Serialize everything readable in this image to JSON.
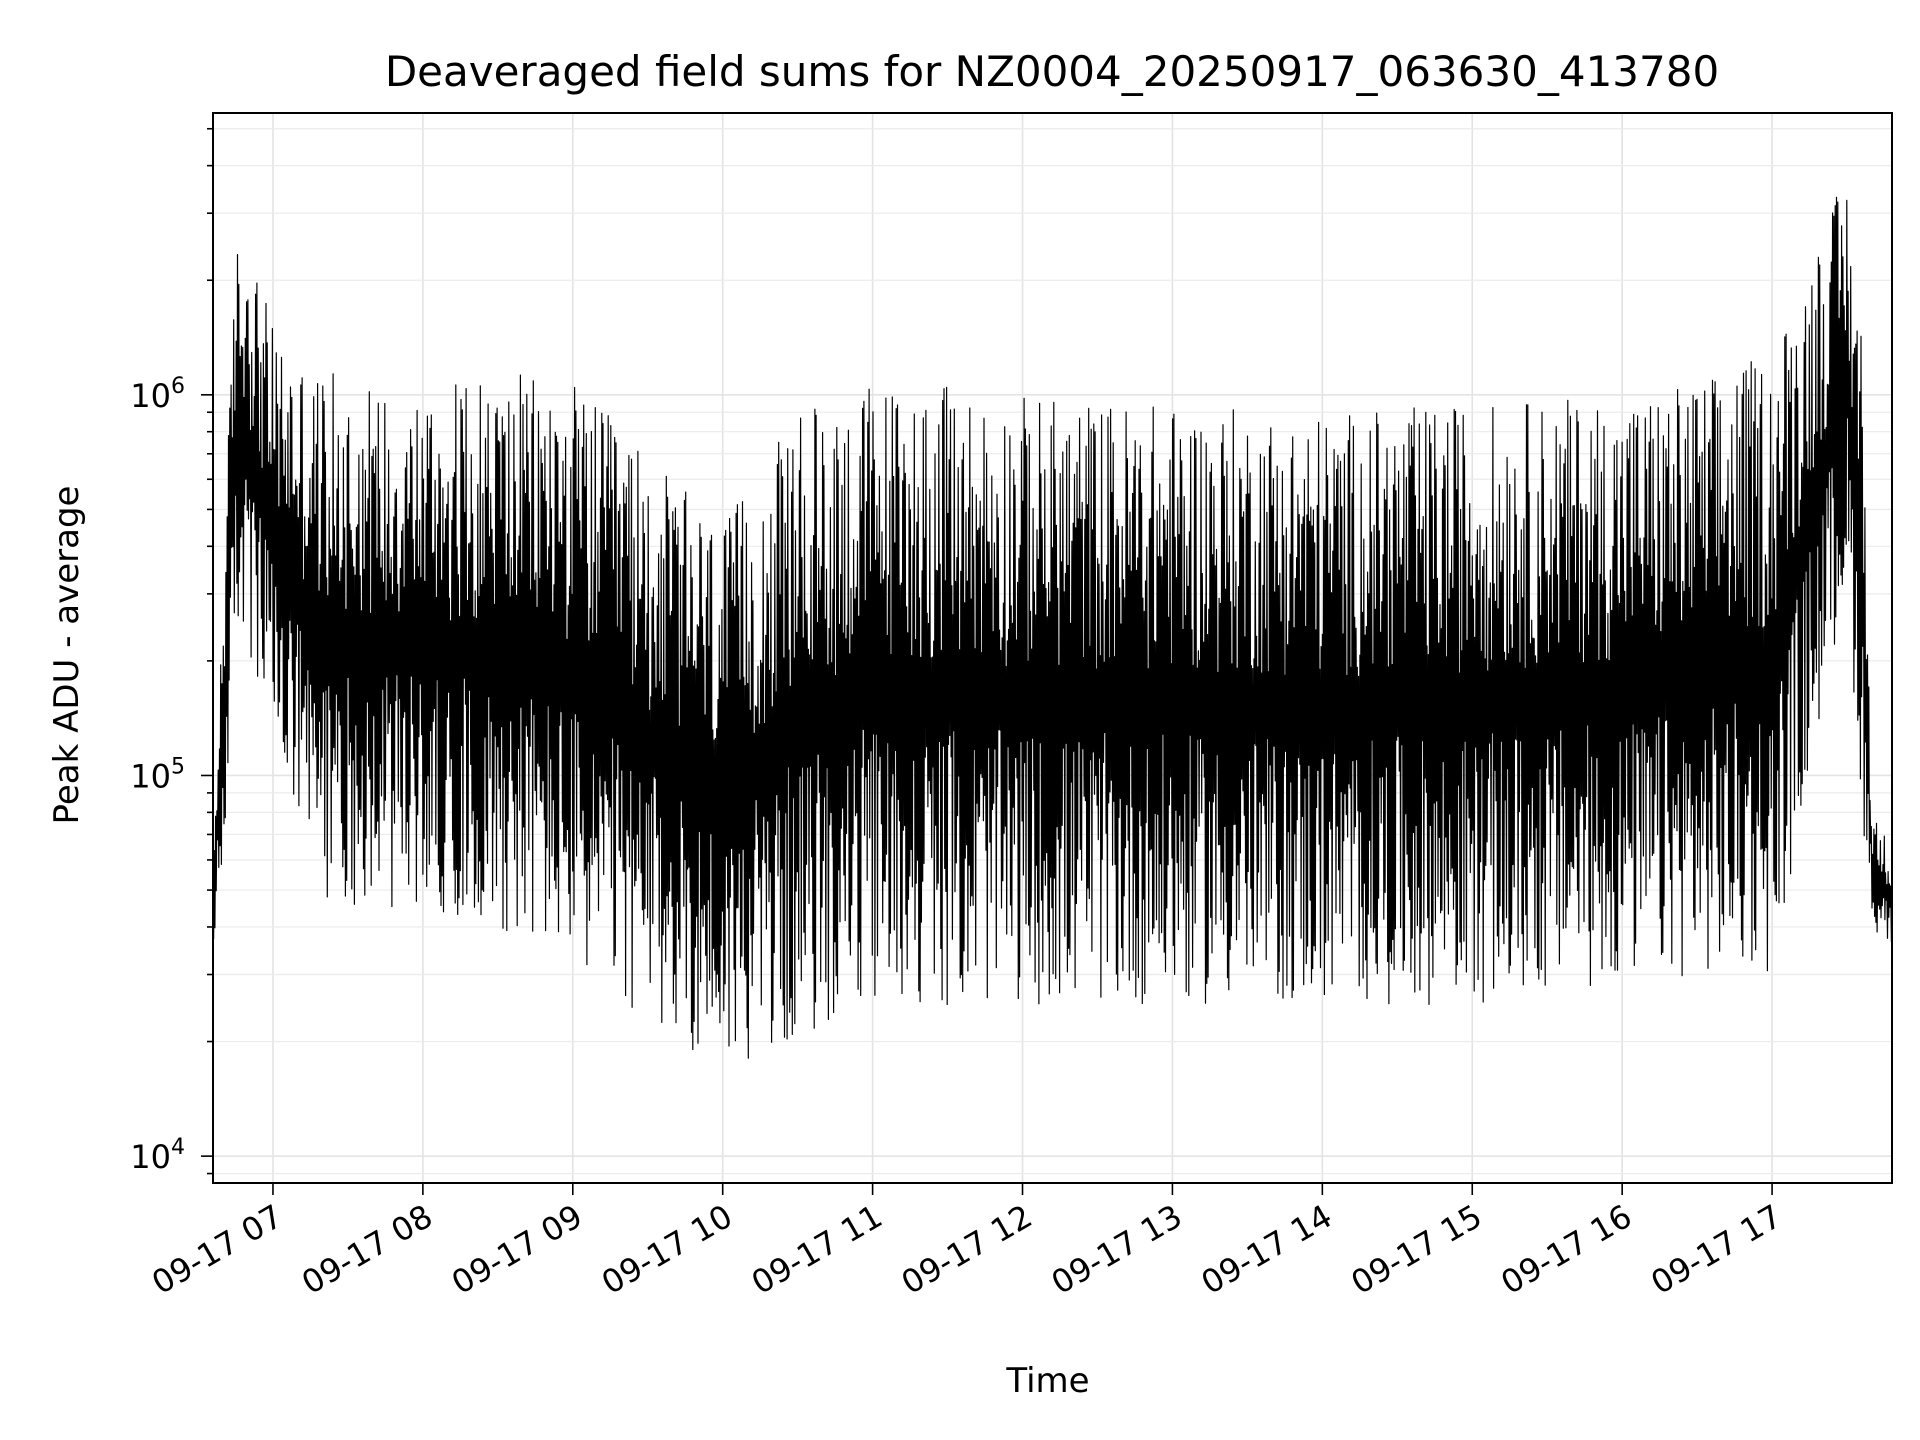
{
  "chart_data": {
    "type": "line",
    "title": "Deaveraged field sums for NZ0004_20250917_063630_413780",
    "xlabel": "Time",
    "ylabel": "Peak ADU - average",
    "yscale": "log",
    "ylim": [
      8500,
      5500000
    ],
    "xlim": [
      "2025-09-17 06:36",
      "2025-09-17 17:48"
    ],
    "x_tick_labels": [
      "09-17 07",
      "09-17 08",
      "09-17 09",
      "09-17 10",
      "09-17 11",
      "09-17 12",
      "09-17 13",
      "09-17 14",
      "09-17 15",
      "09-17 16",
      "09-17 17"
    ],
    "y_tick_labels": [
      {
        "base": "10",
        "exp": "4",
        "value": 10000
      },
      {
        "base": "10",
        "exp": "5",
        "value": 100000
      },
      {
        "base": "10",
        "exp": "6",
        "value": 1000000
      }
    ],
    "grid": true,
    "series_color": "#000000",
    "series": [
      {
        "envelope": {
          "x": [
            "2025-09-17 06:36",
            "2025-09-17 06:41",
            "2025-09-17 06:45",
            "2025-09-17 06:50",
            "2025-09-17 06:55",
            "2025-09-17 07:00",
            "2025-09-17 07:15",
            "2025-09-17 07:30",
            "2025-09-17 08:00",
            "2025-09-17 08:30",
            "2025-09-17 09:00",
            "2025-09-17 09:30",
            "2025-09-17 10:00",
            "2025-09-17 10:30",
            "2025-09-17 11:00",
            "2025-09-17 12:00",
            "2025-09-17 13:00",
            "2025-09-17 14:00",
            "2025-09-17 15:00",
            "2025-09-17 16:00",
            "2025-09-17 16:30",
            "2025-09-17 17:00",
            "2025-09-17 17:20",
            "2025-09-17 17:30",
            "2025-09-17 17:36",
            "2025-09-17 17:40",
            "2025-09-17 17:48"
          ],
          "upper": [
            60000,
            500000,
            2500000,
            2800000,
            2000000,
            1500000,
            1200000,
            1100000,
            1050000,
            1150000,
            1100000,
            700000,
            450000,
            900000,
            1100000,
            1000000,
            950000,
            900000,
            950000,
            1000000,
            1100000,
            1300000,
            2800000,
            3800000,
            1500000,
            80000,
            65000
          ],
          "lower": [
            30000,
            70000,
            250000,
            200000,
            150000,
            120000,
            50000,
            45000,
            45000,
            40000,
            32000,
            22000,
            17000,
            20000,
            25000,
            25000,
            25000,
            25000,
            25000,
            28000,
            30000,
            30000,
            150000,
            300000,
            80000,
            40000,
            35000
          ]
        }
      }
    ]
  }
}
